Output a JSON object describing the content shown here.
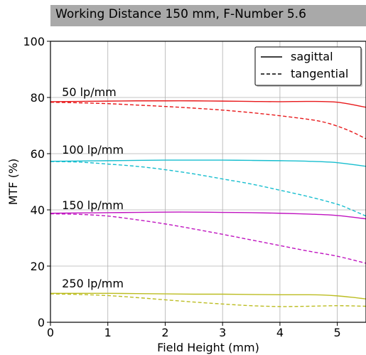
{
  "chart_data": {
    "type": "line",
    "title": "Working Distance 150 mm, F-Number 5.6",
    "xlabel": "Field Height (mm)",
    "ylabel": "MTF (%)",
    "xlim": [
      0,
      5.5
    ],
    "ylim": [
      0,
      100
    ],
    "xticks": [
      0,
      1,
      2,
      3,
      4,
      5
    ],
    "yticks": [
      0,
      20,
      40,
      60,
      80,
      100
    ],
    "grid": true,
    "legend": {
      "position": "top-right",
      "entries": [
        {
          "label": "sagittal",
          "style": "solid"
        },
        {
          "label": "tangential",
          "style": "dashed"
        }
      ]
    },
    "annotations": [
      {
        "text": "50 lp/mm",
        "x": 0.2,
        "y": 80.5
      },
      {
        "text": "100 lp/mm",
        "x": 0.2,
        "y": 60
      },
      {
        "text": "150 lp/mm",
        "x": 0.2,
        "y": 40.2
      },
      {
        "text": "250 lp/mm",
        "x": 0.2,
        "y": 12.4
      }
    ],
    "series": [
      {
        "color": "#e8191b",
        "style": "solid",
        "x": [
          0,
          0.5,
          1,
          1.5,
          2,
          2.5,
          3,
          3.5,
          4,
          4.5,
          5,
          5.5
        ],
        "y": [
          78.5,
          78.6,
          78.7,
          78.8,
          78.8,
          78.8,
          78.7,
          78.6,
          78.5,
          78.6,
          78.3,
          76.5
        ]
      },
      {
        "color": "#e8191b",
        "style": "dashed",
        "x": [
          0,
          0.5,
          1,
          1.5,
          2,
          2.5,
          3,
          3.5,
          4,
          4.5,
          4.75,
          5,
          5.25,
          5.5
        ],
        "y": [
          78.3,
          78.1,
          77.8,
          77.3,
          76.8,
          76.2,
          75.5,
          74.6,
          73.5,
          72.2,
          71.3,
          69.8,
          67.8,
          65.3
        ]
      },
      {
        "color": "#17becf",
        "style": "solid",
        "x": [
          0,
          0.5,
          1,
          1.5,
          2,
          2.5,
          3,
          3.5,
          4,
          4.5,
          5,
          5.5
        ],
        "y": [
          57.3,
          57.4,
          57.5,
          57.6,
          57.7,
          57.7,
          57.7,
          57.6,
          57.5,
          57.3,
          56.8,
          55.5
        ]
      },
      {
        "color": "#17becf",
        "style": "dashed",
        "x": [
          0,
          0.5,
          1,
          1.5,
          2,
          2.5,
          3,
          3.5,
          4,
          4.5,
          5,
          5.25,
          5.5
        ],
        "y": [
          57.2,
          57.0,
          56.3,
          55.5,
          54.3,
          52.8,
          51.0,
          49.2,
          47.0,
          44.7,
          42.0,
          40.0,
          37.8
        ]
      },
      {
        "color": "#c014c0",
        "style": "solid",
        "x": [
          0,
          0.5,
          1,
          1.5,
          2,
          2.5,
          3,
          3.5,
          4,
          4.5,
          5,
          5.5
        ],
        "y": [
          38.8,
          38.9,
          39.0,
          39.1,
          39.2,
          39.2,
          39.1,
          39.0,
          38.8,
          38.5,
          38.0,
          36.8
        ]
      },
      {
        "color": "#c014c0",
        "style": "dashed",
        "x": [
          0,
          0.5,
          1,
          1.5,
          2,
          2.5,
          3,
          3.5,
          4,
          4.5,
          5,
          5.5
        ],
        "y": [
          38.6,
          38.4,
          37.8,
          36.5,
          35.0,
          33.2,
          31.3,
          29.3,
          27.3,
          25.3,
          23.5,
          21.0
        ]
      },
      {
        "color": "#bcbd22",
        "style": "solid",
        "x": [
          0,
          0.5,
          1,
          1.5,
          2,
          2.5,
          3,
          3.5,
          4,
          4.5,
          4.75,
          5,
          5.25,
          5.5
        ],
        "y": [
          10.3,
          10.3,
          10.3,
          10.2,
          10.1,
          10.0,
          10.0,
          9.9,
          9.8,
          9.8,
          9.7,
          9.4,
          8.9,
          8.3
        ]
      },
      {
        "color": "#bcbd22",
        "style": "dashed",
        "x": [
          0,
          0.5,
          1,
          1.5,
          2,
          2.5,
          3,
          3.5,
          4,
          4.5,
          5,
          5.5
        ],
        "y": [
          10.1,
          9.9,
          9.5,
          8.8,
          8.0,
          7.2,
          6.5,
          5.9,
          5.6,
          5.7,
          5.9,
          5.7
        ]
      }
    ]
  }
}
